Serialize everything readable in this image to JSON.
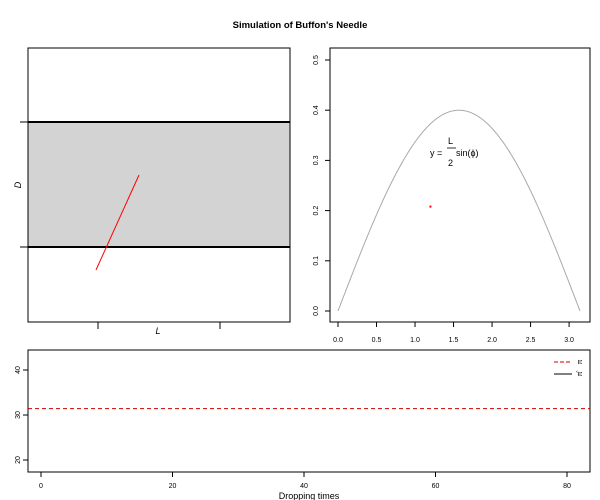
{
  "figure": {
    "title": "Simulation of Buffon's Needle"
  },
  "colors": {
    "needle": "#ff0000",
    "point": "#ff0000",
    "reference_line": "#cc0000",
    "band_fill": "#d3d3d3",
    "curve": "#a9a9a9",
    "estimate_line": "#000000"
  },
  "chart_data": [
    {
      "id": "needle-panel",
      "type": "diagram",
      "xlabel": "L",
      "ylabel": "D",
      "axis_ticks": "unlabeled",
      "band": {
        "description": "shaded strip between two parallel lines"
      },
      "needle": {
        "color": "red"
      }
    },
    {
      "id": "sine-panel",
      "type": "line",
      "x": {
        "min": 0,
        "max": 3.14159,
        "ticks": [
          "0.0",
          "0.5",
          "1.0",
          "1.5",
          "2.0",
          "2.5",
          "3.0"
        ]
      },
      "y": {
        "min": 0,
        "max": 0.5,
        "ticks": [
          "0.0",
          "0.1",
          "0.2",
          "0.3",
          "0.4",
          "0.5"
        ]
      },
      "curve": {
        "formula_text": {
          "lhs": "y =",
          "num": "L",
          "den": "2",
          "rhs": "sin(ϕ)"
        },
        "amplitude": 0.4
      },
      "points": [
        {
          "x": 1.2,
          "y": 0.208
        }
      ]
    },
    {
      "id": "estimate-panel",
      "type": "line",
      "xlabel": "Dropping times",
      "xlim": [
        0,
        85
      ],
      "ylim": [
        18,
        44
      ],
      "x_ticks": [
        "0",
        "20",
        "40",
        "60",
        "80"
      ],
      "y_ticks": [
        "20",
        "30",
        "40"
      ],
      "legend": {
        "placement": "top-right",
        "entries": [
          {
            "label": "π",
            "style": "dashed",
            "color": "red"
          },
          {
            "label": "π̂",
            "style": "solid",
            "color": "black"
          }
        ]
      },
      "series": [
        {
          "name": "π",
          "style": "dashed",
          "y": 31.4159
        }
      ]
    }
  ]
}
